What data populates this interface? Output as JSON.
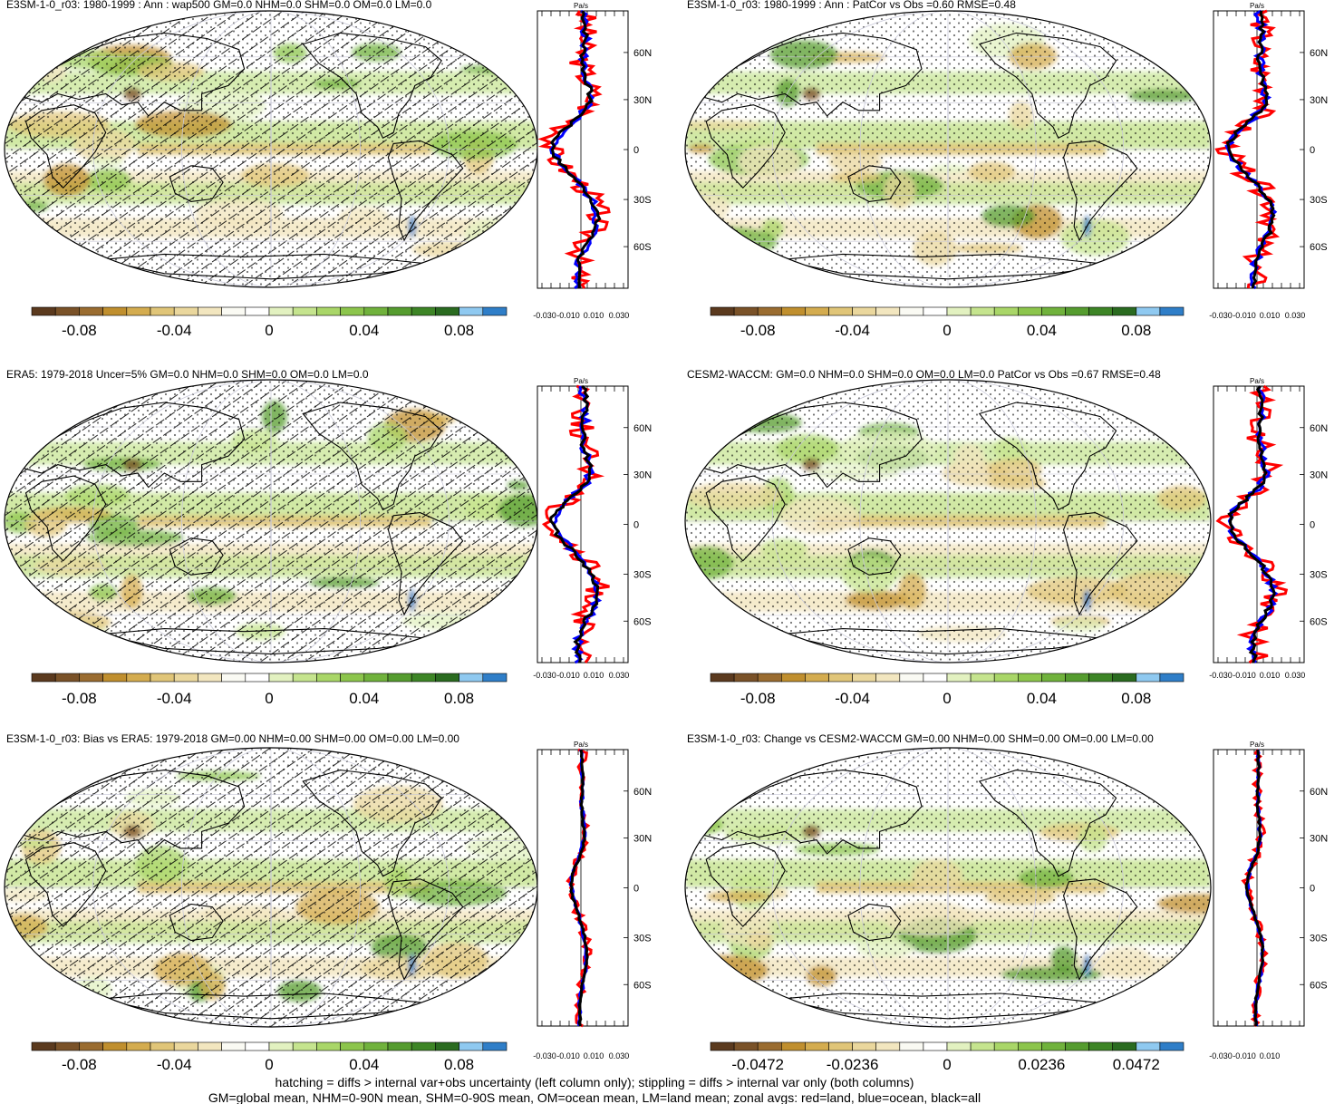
{
  "colors": {
    "colorbar": [
      "#5b3a1e",
      "#7a5228",
      "#9a6c30",
      "#c08f2e",
      "#d4ac4f",
      "#e0c578",
      "#ead79d",
      "#f2e6bf",
      "#fafaf3",
      "#ffffff",
      "#e2f1c0",
      "#c5e48e",
      "#a9d668",
      "#8cc54c",
      "#70b23c",
      "#559c2f",
      "#3d8526",
      "#2a6b20",
      "#8fc9f0",
      "#2f7ec8"
    ],
    "land": "#ff0000",
    "ocean": "#0000ff",
    "all": "#000000"
  },
  "zonal_units": "Pa/s",
  "lat_labels": [
    "60N",
    "30N",
    "0",
    "30S",
    "60S"
  ],
  "chart_data": [
    {
      "type": "heatmap",
      "title": "E3SM-1-0_r03: 1980-1999 : Ann : wap500 GM=0.0 NHM=0.0 SHM=0.0 OM=0.0 LM=0.0",
      "colorbar_ticks": [
        "-0.08",
        "-0.04",
        "0",
        "0.04",
        "0.08"
      ],
      "zonal_xticks": [
        "-0.030",
        "-0.010",
        "0.010",
        "0.030"
      ],
      "hatching": true
    },
    {
      "type": "heatmap",
      "title": "E3SM-1-0_r03: 1980-1999 : Ann : PatCor vs Obs =0.60 RMSE=0.48",
      "colorbar_ticks": [
        "-0.08",
        "-0.04",
        "0",
        "0.04",
        "0.08"
      ],
      "zonal_xticks": [
        "-0.030",
        "-0.010",
        "0.010",
        "0.030"
      ],
      "hatching": false
    },
    {
      "type": "heatmap",
      "title": "ERA5: 1979-2018 Uncer=5% GM=0.0 NHM=0.0 SHM=0.0 OM=0.0 LM=0.0",
      "colorbar_ticks": [
        "-0.08",
        "-0.04",
        "0",
        "0.04",
        "0.08"
      ],
      "zonal_xticks": [
        "-0.030",
        "-0.010",
        "0.010",
        "0.030"
      ],
      "hatching": true
    },
    {
      "type": "heatmap",
      "title": "CESM2-WACCM: GM=0.0 NHM=0.0 SHM=0.0 OM=0.0 LM=0.0 PatCor vs Obs =0.67 RMSE=0.48",
      "colorbar_ticks": [
        "-0.08",
        "-0.04",
        "0",
        "0.04",
        "0.08"
      ],
      "zonal_xticks": [
        "-0.030",
        "-0.010",
        "0.010",
        "0.030"
      ],
      "hatching": false
    },
    {
      "type": "heatmap",
      "title": "E3SM-1-0_r03: Bias vs ERA5: 1979-2018 GM=0.00 NHM=0.00 SHM=0.00 OM=0.00 LM=0.00",
      "colorbar_ticks": [
        "-0.08",
        "-0.04",
        "0",
        "0.04",
        "0.08"
      ],
      "zonal_xticks": [
        "-0.030",
        "-0.010",
        "0.010",
        "0.030"
      ],
      "hatching": true
    },
    {
      "type": "heatmap",
      "title": "E3SM-1-0_r03: Change vs CESM2-WACCM GM=0.00 NHM=0.00 SHM=0.00 OM=0.00 LM=0.00",
      "colorbar_ticks": [
        "-0.0472",
        "-0.0236",
        "0",
        "0.0236",
        "0.0472"
      ],
      "zonal_xticks": [
        "-0.030",
        "-0.010",
        "0.010"
      ],
      "hatching": false
    }
  ],
  "footer": {
    "line1": "hatching = diffs > internal var+obs uncertainty (left column only); stippling = diffs > internal var only (both columns)",
    "line2": "GM=global mean, NHM=0-90N mean, SHM=0-90S mean, OM=ocean mean, LM=land mean; zonal avgs: red=land, blue=ocean, black=all"
  }
}
